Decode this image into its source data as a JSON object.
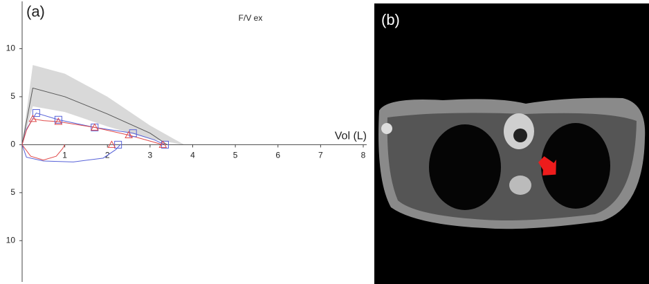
{
  "chart_data": {
    "type": "line",
    "label": "(a)",
    "title": "F/V ex",
    "x_label": "Vol (L)",
    "xlim": [
      0,
      8
    ],
    "xticks": [
      1,
      2,
      3,
      4,
      5,
      6,
      7,
      8
    ],
    "ylim": [
      -14.3,
      14.5
    ],
    "yticks": [
      {
        "value": -10,
        "label": "10"
      },
      {
        "value": -5,
        "label": "5"
      },
      0,
      5,
      10
    ],
    "band": {
      "color": "#d9d9d9",
      "x": [
        0,
        0.25,
        1,
        2,
        3,
        3.8
      ],
      "upper": [
        0,
        8.3,
        7.4,
        5,
        2,
        0
      ],
      "lower": [
        0,
        4,
        3.4,
        1.9,
        0.6,
        0
      ]
    },
    "series": [
      {
        "color": "#555555",
        "x": [
          0,
          0.25,
          1,
          2,
          3,
          3.4
        ],
        "values": [
          0,
          5.9,
          5,
          3.2,
          1.2,
          0
        ]
      },
      {
        "color": "#5560d8",
        "x": [
          0,
          0.1,
          0.33,
          0.85,
          1.7,
          2.6,
          3.1,
          3.35
        ],
        "values": [
          0,
          1.6,
          3.3,
          2.6,
          1.8,
          1.2,
          0.5,
          0
        ]
      },
      {
        "color": "#5560d8",
        "x": [
          0,
          0.1,
          0.5,
          1.2,
          1.9,
          2.2,
          2.3
        ],
        "values": [
          0,
          -1.3,
          -1.7,
          -1.8,
          -1.4,
          -0.5,
          0
        ]
      },
      {
        "color": "#e04848",
        "x": [
          0,
          0.1,
          0.25,
          0.5,
          0.85,
          1.7,
          2.5,
          3.3
        ],
        "values": [
          0,
          1.5,
          2.7,
          2.5,
          2.4,
          1.8,
          1.0,
          0
        ]
      },
      {
        "color": "#e04848",
        "x": [
          0,
          0.2,
          0.5,
          0.8,
          0.95,
          1.0
        ],
        "values": [
          0,
          -1.2,
          -1.6,
          -1.2,
          -0.4,
          0
        ]
      }
    ],
    "markers": [
      {
        "marker": "square",
        "color": "#5560d8",
        "x": [
          0.33,
          0.85,
          1.7,
          2.6,
          3.35,
          2.25
        ],
        "values": [
          3.3,
          2.6,
          1.8,
          1.2,
          0,
          0
        ]
      },
      {
        "marker": "triangle",
        "color": "#e04848",
        "x": [
          0.25,
          0.85,
          1.7,
          2.5,
          3.3,
          2.1
        ],
        "values": [
          2.7,
          2.4,
          1.8,
          1.0,
          0,
          0
        ]
      }
    ]
  },
  "panel_b": {
    "label": "(b)"
  }
}
